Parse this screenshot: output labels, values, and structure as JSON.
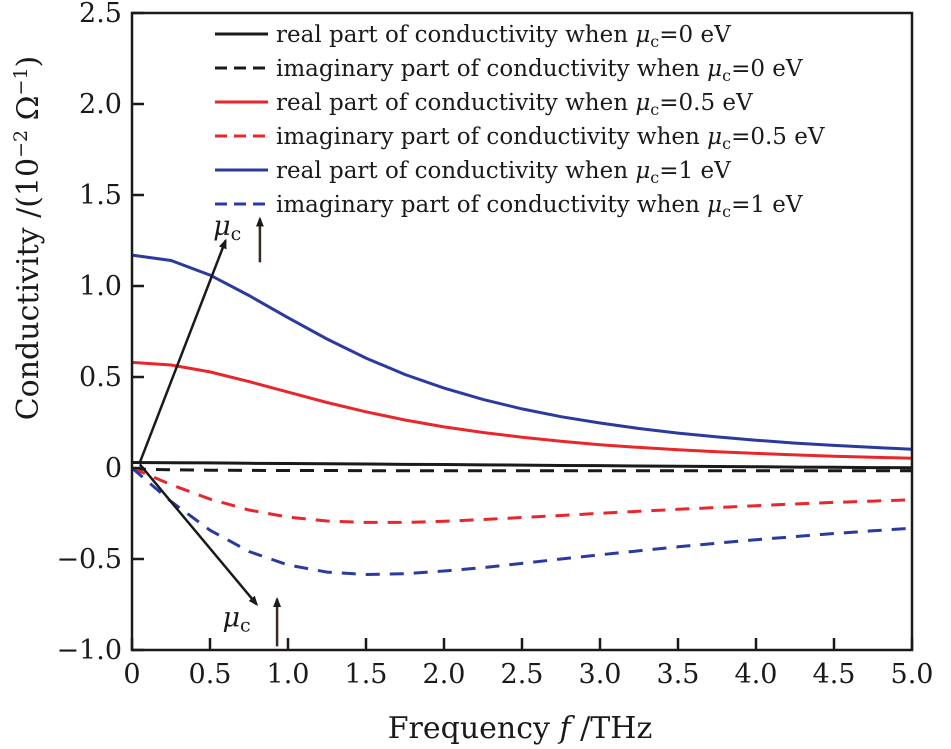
{
  "chart_data": {
    "type": "line",
    "xlabel": {
      "prefix": "Frequency ",
      "symbol": "f",
      "suffix": " /THz"
    },
    "ylabel": {
      "prefix": "Conductivity /(10",
      "exp1": "−2",
      "mid": " Ω",
      "exp2": "−1",
      "suffix": ")"
    },
    "xlim": [
      0,
      5.0
    ],
    "ylim": [
      -1.0,
      2.5
    ],
    "xticks": [
      "0",
      "0.5",
      "1.0",
      "1.5",
      "2.0",
      "2.5",
      "3.0",
      "3.5",
      "4.0",
      "4.5",
      "5.0"
    ],
    "yticks": [
      "2.5",
      "2.0",
      "1.5",
      "1.0",
      "0.5",
      "0",
      "−0.5",
      "−1.0"
    ],
    "ytick_values": [
      2.5,
      2.0,
      1.5,
      1.0,
      0.5,
      0,
      -0.5,
      -1.0
    ],
    "xtick_values": [
      0,
      0.5,
      1.0,
      1.5,
      2.0,
      2.5,
      3.0,
      3.5,
      4.0,
      4.5,
      5.0
    ],
    "grid": false,
    "legend_position": "top-right",
    "x": [
      0,
      0.25,
      0.5,
      0.75,
      1.0,
      1.25,
      1.5,
      1.75,
      2.0,
      2.25,
      2.5,
      2.75,
      3.0,
      3.25,
      3.5,
      3.75,
      4.0,
      4.25,
      4.5,
      4.75,
      5.0
    ],
    "series": [
      {
        "legend": {
          "prefix": "real part of conductivity when ",
          "symbol": "μ",
          "subscript": "c",
          "suffix": "=0 eV"
        },
        "color": "#1a1a1a",
        "dashed": false,
        "values": [
          0.03,
          0.029,
          0.028,
          0.026,
          0.025,
          0.023,
          0.022,
          0.02,
          0.019,
          0.017,
          0.016,
          0.014,
          0.013,
          0.011,
          0.01,
          0.008,
          0.007,
          0.005,
          0.004,
          0.002,
          0.001
        ]
      },
      {
        "legend": {
          "prefix": "imaginary part of conductivity when ",
          "symbol": "μ",
          "subscript": "c",
          "suffix": "=0 eV"
        },
        "color": "#1a1a1a",
        "dashed": true,
        "values": [
          -0.005,
          -0.01,
          -0.012,
          -0.013,
          -0.014,
          -0.014,
          -0.015,
          -0.015,
          -0.015,
          -0.015,
          -0.015,
          -0.015,
          -0.015,
          -0.015,
          -0.015,
          -0.015,
          -0.015,
          -0.015,
          -0.015,
          -0.015,
          -0.015
        ]
      },
      {
        "legend": {
          "prefix": "real part of conductivity when ",
          "symbol": "μ",
          "subscript": "c",
          "suffix": "=0.5 eV"
        },
        "color": "#e8262b",
        "dashed": false,
        "values": [
          0.58,
          0.566,
          0.528,
          0.475,
          0.417,
          0.36,
          0.309,
          0.264,
          0.226,
          0.195,
          0.169,
          0.147,
          0.128,
          0.113,
          0.1,
          0.089,
          0.08,
          0.072,
          0.065,
          0.059,
          0.054
        ]
      },
      {
        "legend": {
          "prefix": "imaginary part of conductivity when ",
          "symbol": "μ",
          "subscript": "c",
          "suffix": "=0.5 eV"
        },
        "color": "#e8262b",
        "dashed": true,
        "values": [
          0,
          -0.091,
          -0.171,
          -0.231,
          -0.27,
          -0.291,
          -0.299,
          -0.299,
          -0.293,
          -0.283,
          -0.272,
          -0.261,
          -0.249,
          -0.238,
          -0.227,
          -0.217,
          -0.207,
          -0.198,
          -0.189,
          -0.182,
          -0.174
        ]
      },
      {
        "legend": {
          "prefix": "real part of conductivity when ",
          "symbol": "μ",
          "subscript": "c",
          "suffix": "=1 eV"
        },
        "color": "#2b3a9e",
        "dashed": false,
        "values": [
          1.17,
          1.14,
          1.06,
          0.948,
          0.826,
          0.709,
          0.604,
          0.514,
          0.439,
          0.377,
          0.325,
          0.282,
          0.247,
          0.217,
          0.192,
          0.171,
          0.153,
          0.137,
          0.124,
          0.113,
          0.103
        ]
      },
      {
        "legend": {
          "prefix": "imaginary part of conductivity when ",
          "symbol": "μ",
          "subscript": "c",
          "suffix": "=1 eV"
        },
        "color": "#2b3a9e",
        "dashed": true,
        "values": [
          0,
          -0.184,
          -0.342,
          -0.459,
          -0.533,
          -0.572,
          -0.585,
          -0.581,
          -0.566,
          -0.547,
          -0.524,
          -0.5,
          -0.477,
          -0.455,
          -0.433,
          -0.413,
          -0.394,
          -0.377,
          -0.36,
          -0.345,
          -0.331
        ]
      }
    ],
    "annotations": [
      {
        "symbol": "μ",
        "subscript": "c",
        "direction": "increasing",
        "arrow_from": [
          0.05,
          0.03
        ],
        "arrow_to": [
          0.6,
          1.25
        ]
      },
      {
        "symbol": "μ",
        "subscript": "c",
        "direction": "increasing",
        "arrow_from": [
          0.05,
          0.02
        ],
        "arrow_to": [
          0.8,
          -0.75
        ]
      }
    ]
  }
}
